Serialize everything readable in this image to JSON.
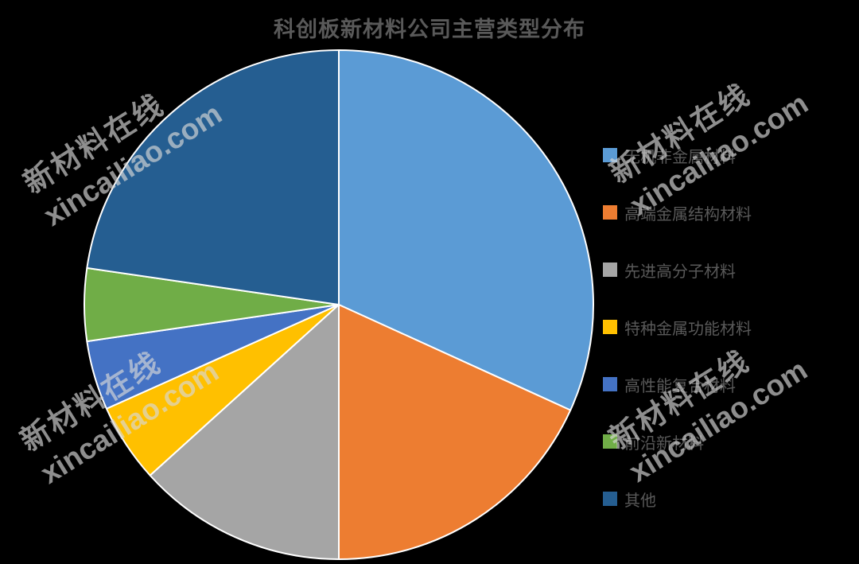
{
  "title": "科创板新材料公司主营类型分布",
  "title_color": "#595959",
  "background_color": "#000000",
  "chart_data": {
    "type": "pie",
    "title": "科创板新材料公司主营类型分布",
    "categories": [
      "无机非金属材料",
      "高端金属结构材料",
      "先进高分子材料",
      "特种金属功能材料",
      "高性能复合材料",
      "前沿新材料",
      "其他"
    ],
    "values_percent": [
      31.8,
      18.2,
      13.3,
      5.0,
      4.4,
      4.6,
      22.7
    ],
    "colors": [
      "#5B9BD5",
      "#ED7D31",
      "#A5A5A5",
      "#FFC000",
      "#4472C4",
      "#70AD47",
      "#255E91"
    ],
    "start_angle_deg": 0,
    "direction": "clockwise",
    "slice_border_color": "#FFFFFF",
    "legend_position": "right",
    "legend_marker": "square",
    "label_color": "#595959"
  },
  "legend": {
    "items": [
      {
        "label": "无机非金属材料",
        "color": "#5B9BD5"
      },
      {
        "label": "高端金属结构材料",
        "color": "#ED7D31"
      },
      {
        "label": "先进高分子材料",
        "color": "#A5A5A5"
      },
      {
        "label": "特种金属功能材料",
        "color": "#FFC000"
      },
      {
        "label": "高性能复合材料",
        "color": "#4472C4"
      },
      {
        "label": "前沿新材料",
        "color": "#70AD47"
      },
      {
        "label": "其他",
        "color": "#255E91"
      }
    ]
  },
  "watermark": {
    "line1": "新材料在线",
    "line2": "xincailiao.com",
    "color": "rgba(216,216,216,0.66)",
    "rotation_deg": -32,
    "instance_count": 4
  }
}
